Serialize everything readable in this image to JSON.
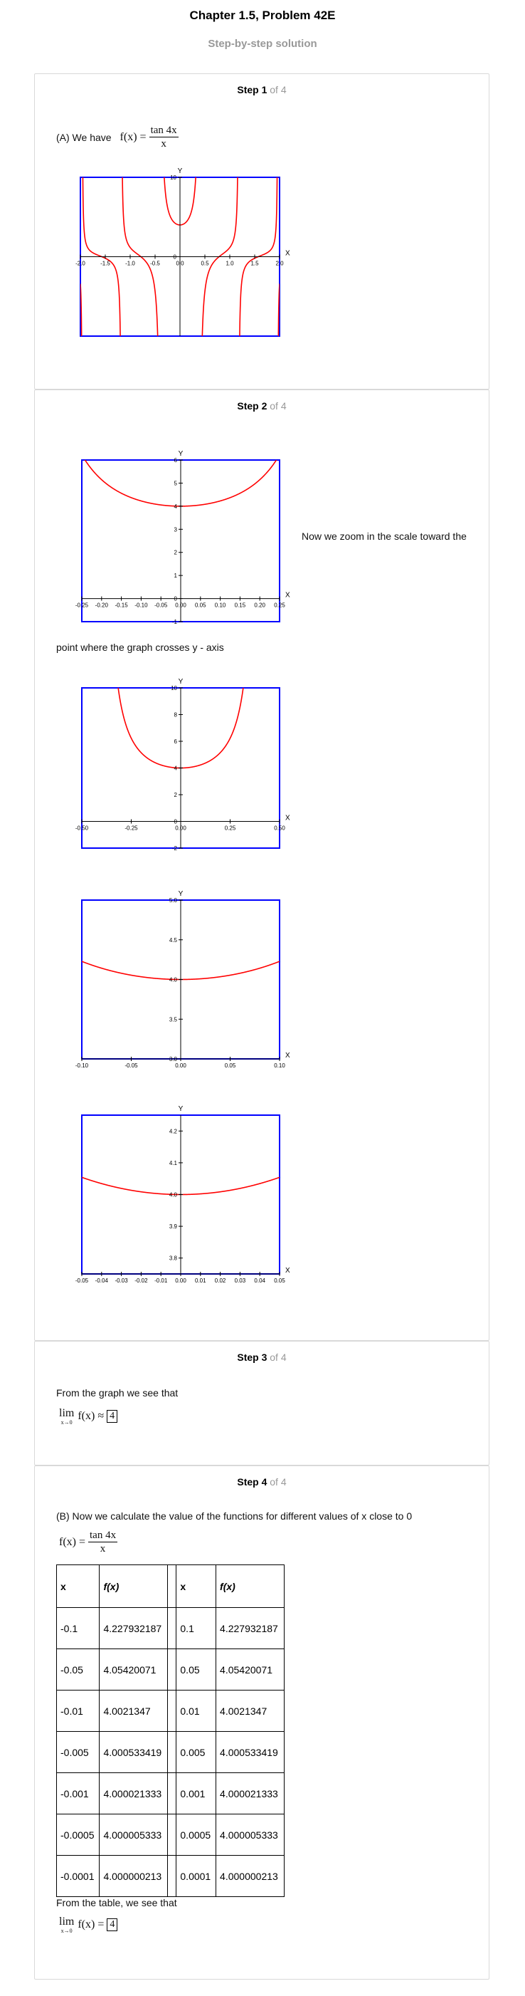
{
  "header": {
    "title": "Chapter 1.5, Problem 42E",
    "subtitle": "Step-by-step solution"
  },
  "step1": {
    "label": "Step 1",
    "of": "of 4",
    "intro": "(A) We have",
    "func_lhs": "f(x) =",
    "func_num": "tan 4x",
    "func_den": "x"
  },
  "step2": {
    "label": "Step 2",
    "of": "of 4",
    "text_a": "Now we zoom in the scale toward the",
    "text_b": "point where the graph crosses y - axis"
  },
  "step3": {
    "label": "Step 3",
    "of": "of 4",
    "text": "From the graph we see that",
    "lim_expr": "lim",
    "lim_sub": "x→0",
    "lim_func": "f(x) ≈",
    "answer": "4"
  },
  "step4": {
    "label": "Step 4",
    "of": "of 4",
    "text": "(B) Now we calculate the value of the functions for different values of x close to 0",
    "func_lhs": "f(x) =",
    "func_num": "tan 4x",
    "func_den": "x",
    "table": {
      "headers": [
        "x",
        "f(x)",
        "x",
        "f(x)"
      ],
      "rows": [
        [
          "-0.1",
          "4.227932187",
          "0.1",
          "4.227932187"
        ],
        [
          "-0.05",
          "4.05420071",
          "0.05",
          "4.05420071"
        ],
        [
          "-0.01",
          "4.0021347",
          "0.01",
          "4.0021347"
        ],
        [
          "-0.005",
          "4.000533419",
          "0.005",
          "4.000533419"
        ],
        [
          "-0.001",
          "4.000021333",
          "0.001",
          "4.000021333"
        ],
        [
          "-0.0005",
          "4.000005333",
          "0.0005",
          "4.000005333"
        ],
        [
          "-0.0001",
          "4.000000213",
          "0.0001",
          "4.000000213"
        ]
      ]
    },
    "conclusion": "From the table, we see that",
    "lim_expr": "lim",
    "lim_sub": "x→0",
    "lim_func": "f(x) =",
    "answer": "4"
  },
  "colors": {
    "frame": "#0000ff",
    "curve": "#ff0000",
    "axis": "#000000"
  },
  "chart_data": [
    {
      "type": "line",
      "xlabel": "X",
      "ylabel": "Y",
      "xlim": [
        -2,
        2
      ],
      "ylim": [
        -10,
        10
      ],
      "x_ticks": [
        "-2.0",
        "-1.5",
        "-1.0",
        "-0.5",
        "0.0",
        "0.5",
        "1.0",
        "1.5",
        "2.0"
      ],
      "y_ticks": [
        "10",
        "0"
      ],
      "function": "tan(4x)/x"
    },
    {
      "type": "line",
      "xlabel": "X",
      "ylabel": "Y",
      "xlim": [
        -0.25,
        0.25
      ],
      "ylim": [
        -1,
        6
      ],
      "x_ticks": [
        "-0.25",
        "-0.20",
        "-0.15",
        "-0.10",
        "-0.05",
        "0.00",
        "0.05",
        "0.10",
        "0.15",
        "0.20",
        "0.25"
      ],
      "y_ticks": [
        "6",
        "5",
        "4",
        "3",
        "2",
        "1",
        "0",
        "-1"
      ],
      "function": "tan(4x)/x"
    },
    {
      "type": "line",
      "xlabel": "X",
      "ylabel": "Y",
      "xlim": [
        -0.5,
        0.5
      ],
      "ylim": [
        -2,
        10
      ],
      "x_ticks": [
        "-0.50",
        "-0.25",
        "0.00",
        "0.25",
        "0.50"
      ],
      "y_ticks": [
        "10",
        "8",
        "6",
        "4",
        "2",
        "0",
        "-2"
      ],
      "function": "tan(4x)/x"
    },
    {
      "type": "line",
      "xlabel": "X",
      "ylabel": "Y",
      "xlim": [
        -0.1,
        0.1
      ],
      "ylim": [
        3,
        5
      ],
      "x_ticks": [
        "-0.10",
        "-0.05",
        "0.00",
        "0.05",
        "0.10"
      ],
      "y_ticks": [
        "5.0",
        "4.5",
        "4.0",
        "3.5",
        "3.0"
      ],
      "function": "tan(4x)/x"
    },
    {
      "type": "line",
      "xlabel": "X",
      "ylabel": "Y",
      "xlim": [
        -0.05,
        0.05
      ],
      "ylim": [
        3.75,
        4.25
      ],
      "x_ticks": [
        "-0.05",
        "-0.04",
        "-0.03",
        "-0.02",
        "-0.01",
        "0.00",
        "0.01",
        "0.02",
        "0.03",
        "0.04",
        "0.05"
      ],
      "y_ticks": [
        "4.2",
        "4.1",
        "4.0",
        "3.9",
        "3.8"
      ],
      "function": "tan(4x)/x"
    }
  ]
}
